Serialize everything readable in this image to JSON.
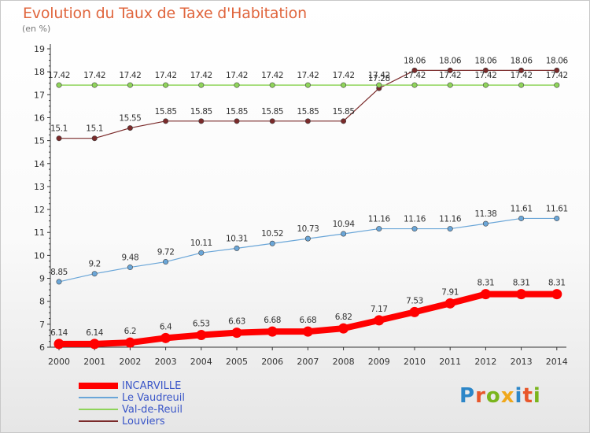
{
  "header": {
    "title": "Evolution du Taux de Taxe d'Habitation",
    "subtitle": "(en %)"
  },
  "logo": {
    "letters": [
      {
        "char": "P",
        "color": "#2c86c8"
      },
      {
        "char": "r",
        "color": "#e8562a"
      },
      {
        "char": "o",
        "color": "#7ab51d"
      },
      {
        "char": "x",
        "color": "#f0a81c"
      },
      {
        "char": "i",
        "color": "#2c86c8"
      },
      {
        "char": "t",
        "color": "#e8562a"
      },
      {
        "char": "i",
        "color": "#7ab51d"
      }
    ]
  },
  "chart_data": {
    "type": "line",
    "categories": [
      "2000",
      "2001",
      "2002",
      "2003",
      "2004",
      "2005",
      "2006",
      "2007",
      "2008",
      "2009",
      "2010",
      "2011",
      "2012",
      "2013",
      "2014"
    ],
    "ylim": [
      6,
      19
    ],
    "yticks": [
      "6",
      "7",
      "8",
      "9",
      "10",
      "11",
      "12",
      "13",
      "14",
      "15",
      "16",
      "17",
      "18",
      "19"
    ],
    "grid": "none",
    "legend_position": "bottom-left",
    "series": [
      {
        "name": "Louviers",
        "color": "#7a2a2a",
        "width": 1.2,
        "values": [
          15.1,
          15.1,
          15.55,
          15.85,
          15.85,
          15.85,
          15.85,
          15.85,
          15.85,
          17.28,
          18.06,
          18.06,
          18.06,
          18.06,
          18.06
        ],
        "labels": [
          "15.1",
          "15.1",
          "15.55",
          "15.85",
          "15.85",
          "15.85",
          "15.85",
          "15.85",
          "15.85",
          "17.28",
          "18.06",
          "18.06",
          "18.06",
          "18.06",
          "18.06"
        ]
      },
      {
        "name": "Val-de-Reuil",
        "color": "#8fd45a",
        "width": 1.5,
        "values": [
          17.42,
          17.42,
          17.42,
          17.42,
          17.42,
          17.42,
          17.42,
          17.42,
          17.42,
          17.42,
          17.42,
          17.42,
          17.42,
          17.42,
          17.42
        ],
        "labels": [
          "17.42",
          "17.42",
          "17.42",
          "17.42",
          "17.42",
          "17.42",
          "17.42",
          "17.42",
          "17.42",
          "17.42",
          "17.42",
          "17.42",
          "17.42",
          "17.42",
          "17.42"
        ]
      },
      {
        "name": "Le Vaudreuil",
        "color": "#6aa6d8",
        "width": 1.2,
        "values": [
          8.85,
          9.2,
          9.48,
          9.72,
          10.11,
          10.31,
          10.52,
          10.73,
          10.94,
          11.16,
          11.16,
          11.16,
          11.38,
          11.61,
          11.61
        ],
        "labels": [
          "8.85",
          "9.2",
          "9.48",
          "9.72",
          "10.11",
          "10.31",
          "10.52",
          "10.73",
          "10.94",
          "11.16",
          "11.16",
          "11.16",
          "11.38",
          "11.61",
          "11.61"
        ]
      },
      {
        "name": "INCARVILLE",
        "color": "#ff0000",
        "width": 8,
        "values": [
          6.14,
          6.14,
          6.2,
          6.4,
          6.53,
          6.63,
          6.68,
          6.68,
          6.82,
          7.17,
          7.53,
          7.91,
          8.31,
          8.31,
          8.31
        ],
        "labels": [
          "6.14",
          "6.14",
          "6.2",
          "6.4",
          "6.53",
          "6.63",
          "6.68",
          "6.68",
          "6.82",
          "7.17",
          "7.53",
          "7.91",
          "8.31",
          "8.31",
          "8.31"
        ]
      }
    ],
    "legend": [
      {
        "name": "INCARVILLE",
        "color": "#ff0000",
        "text_color": "#3a56c8",
        "thickness": 8
      },
      {
        "name": "Le Vaudreuil",
        "color": "#6aa6d8",
        "text_color": "#3a56c8",
        "thickness": 2
      },
      {
        "name": "Val-de-Reuil",
        "color": "#8fd45a",
        "text_color": "#3a56c8",
        "thickness": 2
      },
      {
        "name": "Louviers",
        "color": "#7a2a2a",
        "text_color": "#3a56c8",
        "thickness": 2
      }
    ]
  }
}
